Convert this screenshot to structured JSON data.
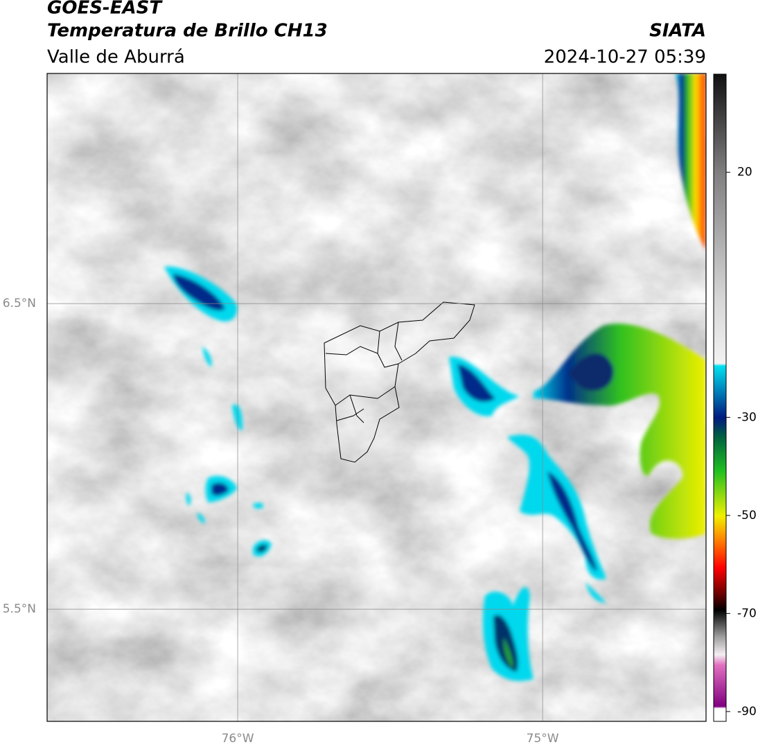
{
  "chart_data": {
    "type": "map",
    "title": "GOES-EAST",
    "subtitle": "Temperatura de Brillo CH13",
    "region": "Valle de Aburrá",
    "source": "SIATA",
    "timestamp": "2024-10-27 05:39",
    "xlim": [
      -76.625,
      -74.464
    ],
    "ylim": [
      5.133,
      7.253
    ],
    "xticks": [
      {
        "value": -76,
        "label": "76°W"
      },
      {
        "value": -75,
        "label": "75°W"
      }
    ],
    "yticks": [
      {
        "value": 6.5,
        "label": "6.5°N"
      },
      {
        "value": 5.5,
        "label": "5.5°N"
      }
    ],
    "grid": true,
    "colorbar": {
      "lim": [
        -92,
        40
      ],
      "ticks": [
        20,
        -30,
        -50,
        -70,
        -90
      ]
    }
  }
}
